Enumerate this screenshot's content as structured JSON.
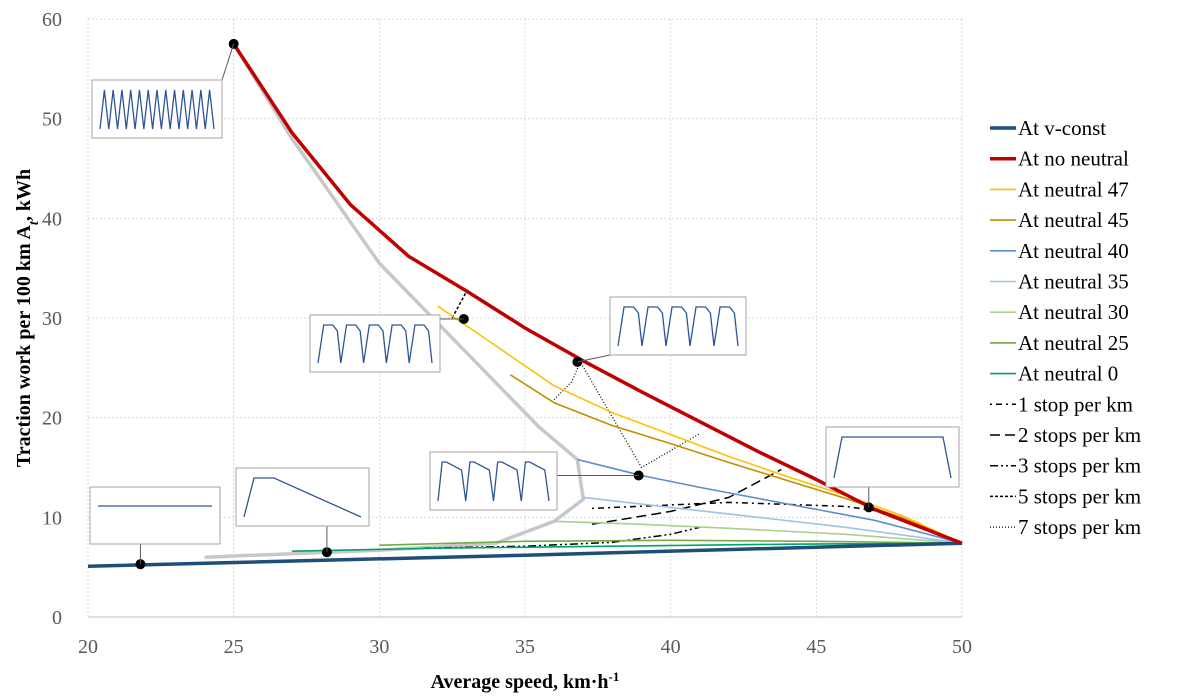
{
  "chart_data": {
    "type": "line",
    "xlabel": "Average speed, km·h",
    "xlabel_sup": "-1",
    "ylabel": "Traction work per 100 km A",
    "ylabel_sub": "t",
    "ylabel_tail": ", kWh",
    "xlim": [
      20,
      50
    ],
    "ylim": [
      0,
      60
    ],
    "xticks": [
      20,
      25,
      30,
      35,
      40,
      45,
      50
    ],
    "yticks": [
      0,
      10,
      20,
      30,
      40,
      50,
      60
    ],
    "grid": true,
    "legend_position": "right",
    "series": [
      {
        "name": "At v-const",
        "color": "#1f4e79",
        "width": 3.5,
        "dash": "",
        "points": [
          [
            20,
            5.1
          ],
          [
            35,
            6.2
          ],
          [
            50,
            7.4
          ]
        ]
      },
      {
        "name": "At no neutral",
        "color": "#c00000",
        "width": 3.5,
        "dash": "",
        "points": [
          [
            25,
            57.5
          ],
          [
            27,
            48.6
          ],
          [
            29,
            41.4
          ],
          [
            31,
            36.2
          ],
          [
            33,
            32.7
          ],
          [
            35,
            29.0
          ],
          [
            37,
            25.7
          ],
          [
            39,
            22.6
          ],
          [
            41,
            19.6
          ],
          [
            43,
            16.6
          ],
          [
            45,
            13.8
          ],
          [
            47,
            10.8
          ],
          [
            50,
            7.4
          ]
        ]
      },
      {
        "name": "At neutral 47",
        "color": "#ffc000",
        "width": 1.6,
        "dash": "",
        "points": [
          [
            32,
            31.2
          ],
          [
            34,
            27.2
          ],
          [
            36,
            23.2
          ],
          [
            38,
            20.5
          ],
          [
            40,
            18.3
          ],
          [
            42,
            16.1
          ],
          [
            44,
            14.1
          ],
          [
            46,
            12.2
          ],
          [
            48,
            10.1
          ],
          [
            50,
            7.4
          ]
        ]
      },
      {
        "name": "At neutral 45",
        "color": "#bf8f00",
        "width": 1.6,
        "dash": "",
        "points": [
          [
            34.5,
            24.3
          ],
          [
            36,
            21.5
          ],
          [
            38,
            19.2
          ],
          [
            40,
            17.4
          ],
          [
            42,
            15.5
          ],
          [
            44,
            13.7
          ],
          [
            46,
            11.9
          ],
          [
            48,
            9.9
          ],
          [
            50,
            7.4
          ]
        ]
      },
      {
        "name": "At neutral 40",
        "color": "#5b8ec9",
        "width": 1.6,
        "dash": "",
        "points": [
          [
            36.8,
            15.8
          ],
          [
            39,
            14.2
          ],
          [
            41,
            13.0
          ],
          [
            43,
            11.9
          ],
          [
            45,
            10.8
          ],
          [
            47,
            9.7
          ],
          [
            50,
            7.4
          ]
        ]
      },
      {
        "name": "At neutral 35",
        "color": "#9dc3e6",
        "width": 1.6,
        "dash": "",
        "points": [
          [
            37,
            12.0
          ],
          [
            40,
            11.0
          ],
          [
            43,
            10.0
          ],
          [
            46,
            9.0
          ],
          [
            50,
            7.4
          ]
        ]
      },
      {
        "name": "At neutral 30",
        "color": "#a9d18e",
        "width": 1.6,
        "dash": "",
        "points": [
          [
            36,
            9.6
          ],
          [
            39,
            9.3
          ],
          [
            42,
            8.9
          ],
          [
            46,
            8.3
          ],
          [
            50,
            7.4
          ]
        ]
      },
      {
        "name": "At neutral 25",
        "color": "#70ad47",
        "width": 1.6,
        "dash": "",
        "points": [
          [
            30,
            7.2
          ],
          [
            35,
            7.6
          ],
          [
            40,
            7.7
          ],
          [
            45,
            7.6
          ],
          [
            50,
            7.4
          ]
        ]
      },
      {
        "name": "At neutral 0",
        "color": "#00a36c",
        "width": 1.6,
        "dash": "",
        "points": [
          [
            27,
            6.6
          ],
          [
            32,
            6.9
          ],
          [
            38,
            7.1
          ],
          [
            44,
            7.3
          ],
          [
            50,
            7.4
          ]
        ]
      },
      {
        "name": "1 stop per km",
        "color": "#000000",
        "width": 1.5,
        "dash": "2,4,6,4",
        "points": [
          [
            37.3,
            10.9
          ],
          [
            42,
            11.5
          ],
          [
            46,
            11.1
          ],
          [
            47.2,
            10.6
          ]
        ]
      },
      {
        "name": "2 stops per km",
        "color": "#000000",
        "width": 1.5,
        "dash": "10,5",
        "points": [
          [
            37.3,
            9.3
          ],
          [
            40,
            10.6
          ],
          [
            42,
            12.0
          ],
          [
            43.8,
            14.8
          ]
        ]
      },
      {
        "name": "3 stops per km",
        "color": "#000000",
        "width": 1.5,
        "dash": "8,3,2,3,2,3",
        "points": [
          [
            31.5,
            6.9
          ],
          [
            35,
            7.1
          ],
          [
            38,
            7.5
          ],
          [
            40,
            8.3
          ],
          [
            41,
            9.0
          ]
        ]
      },
      {
        "name": "5 stops per km",
        "color": "#000000",
        "width": 1.5,
        "dash": "3,2",
        "points": [
          [
            32.5,
            30.0
          ],
          [
            33,
            32.7
          ]
        ]
      },
      {
        "name": "7 stops per km",
        "color": "#000000",
        "width": 1.2,
        "dash": "1,2",
        "points": [
          [
            36,
            21.8
          ],
          [
            36.6,
            23.6
          ],
          [
            36.9,
            25.6
          ],
          [
            39,
            15.0
          ],
          [
            41,
            18.4
          ]
        ]
      }
    ],
    "envelope": {
      "color": "#c8c8c8",
      "width": 3.5,
      "points": [
        [
          24,
          6.0
        ],
        [
          30,
          6.7
        ],
        [
          34,
          7.4
        ],
        [
          36,
          9.6
        ],
        [
          37,
          11.8
        ],
        [
          36.8,
          15.8
        ],
        [
          35.5,
          19.0
        ],
        [
          33.5,
          25.0
        ],
        [
          30,
          35.5
        ],
        [
          27,
          48.0
        ],
        [
          25,
          57.5
        ]
      ]
    },
    "markers": [
      [
        25,
        57.5
      ],
      [
        32.9,
        29.9
      ],
      [
        36.8,
        25.6
      ],
      [
        38.9,
        14.2
      ],
      [
        46.8,
        11.0
      ],
      [
        28.2,
        6.5
      ],
      [
        21.8,
        5.3
      ]
    ],
    "insets": [
      {
        "wave": "zigzag",
        "points_to": [
          25,
          57.5
        ]
      },
      {
        "wave": "slanted-trapezoids",
        "points_to": [
          32.9,
          29.9
        ]
      },
      {
        "wave": "sharp-trapezoids",
        "points_to": [
          36.8,
          25.6
        ]
      },
      {
        "wave": "sawtooth",
        "points_to": [
          38.9,
          14.2
        ]
      },
      {
        "wave": "single-trapezoid",
        "points_to": [
          46.8,
          11.0
        ]
      },
      {
        "wave": "single-coast",
        "points_to": [
          28.2,
          6.5
        ]
      },
      {
        "wave": "flat",
        "points_to": [
          21.8,
          5.3
        ]
      }
    ]
  }
}
